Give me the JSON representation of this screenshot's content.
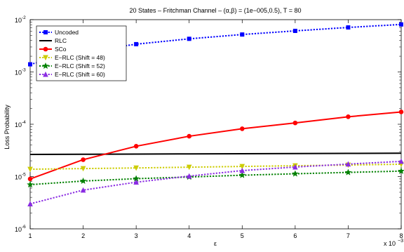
{
  "chart_data": {
    "type": "line",
    "title": "20 States – Fritchman Channel – (α,β) = (1e−005,0.5), T = 80",
    "xlabel": "ε",
    "ylabel": "Loss Probability",
    "x_multiplier_label": "x 10",
    "x_multiplier_exp": "−3",
    "x": [
      1,
      2,
      3,
      4,
      5,
      6,
      7,
      8
    ],
    "x_ticks": [
      "1",
      "2",
      "3",
      "4",
      "5",
      "6",
      "7",
      "8"
    ],
    "xlim": [
      1,
      8
    ],
    "ylim": [
      1e-06,
      0.01
    ],
    "yscale": "log",
    "y_ticks": [
      {
        "value": 1e-06,
        "base": "10",
        "exp": "-6"
      },
      {
        "value": 1e-05,
        "base": "10",
        "exp": "-5"
      },
      {
        "value": 0.0001,
        "base": "10",
        "exp": "-4"
      },
      {
        "value": 0.001,
        "base": "10",
        "exp": "-3"
      },
      {
        "value": 0.01,
        "base": "10",
        "exp": "-2"
      }
    ],
    "grid": false,
    "legend_position": "top-left",
    "series": [
      {
        "name": "Uncoded",
        "color": "#0000ff",
        "line": "dotted",
        "marker": "square",
        "values": [
          0.0014,
          0.0024,
          0.0034,
          0.0043,
          0.0052,
          0.0061,
          0.0071,
          0.0081
        ]
      },
      {
        "name": "RLC",
        "color": "#000000",
        "line": "solid",
        "marker": "none",
        "values": [
          2.65e-05,
          2.67e-05,
          2.69e-05,
          2.71e-05,
          2.73e-05,
          2.75e-05,
          2.77e-05,
          2.8e-05
        ]
      },
      {
        "name": "SCo",
        "color": "#ff0000",
        "line": "solid",
        "marker": "circle",
        "values": [
          9e-06,
          2.1e-05,
          3.8e-05,
          5.9e-05,
          8.2e-05,
          0.000106,
          0.000139,
          0.000172
        ]
      },
      {
        "name": "E−RLC (Shift = 48)",
        "color": "#cccc00",
        "line": "dotted",
        "marker": "triangle-down",
        "values": [
          1.38e-05,
          1.42e-05,
          1.46e-05,
          1.51e-05,
          1.56e-05,
          1.61e-05,
          1.66e-05,
          1.72e-05
        ]
      },
      {
        "name": "E−RLC (Shift = 52)",
        "color": "#008000",
        "line": "dotted",
        "marker": "star",
        "values": [
          7e-06,
          8.2e-06,
          9.1e-06,
          9.8e-06,
          1.06e-05,
          1.13e-05,
          1.2e-05,
          1.27e-05
        ]
      },
      {
        "name": "E−RLC (Shift = 60)",
        "color": "#8a2be2",
        "line": "dotted",
        "marker": "triangle-up",
        "values": [
          3e-06,
          5.5e-06,
          7.8e-06,
          1.02e-05,
          1.3e-05,
          1.52e-05,
          1.73e-05,
          1.95e-05
        ]
      }
    ]
  }
}
